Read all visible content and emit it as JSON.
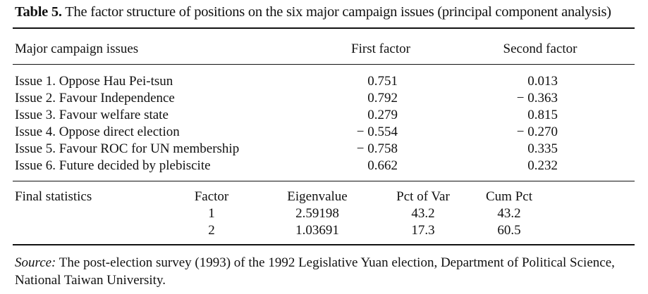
{
  "caption": {
    "label": "Table 5.",
    "text": "The factor structure of positions on the six major campaign issues (principal component analysis)"
  },
  "header": {
    "issues": "Major campaign issues",
    "first": "First factor",
    "second": "Second factor"
  },
  "issues": [
    {
      "name": "Issue 1. Oppose Hau Pei-tsun",
      "first": "0.751",
      "second": "0.013"
    },
    {
      "name": "Issue 2. Favour Independence",
      "first": "0.792",
      "second": "− 0.363"
    },
    {
      "name": "Issue 3. Favour welfare state",
      "first": "0.279",
      "second": "0.815"
    },
    {
      "name": "Issue 4. Oppose direct election",
      "first": "− 0.554",
      "second": "− 0.270"
    },
    {
      "name": "Issue 5. Favour ROC for UN membership",
      "first": "− 0.758",
      "second": "0.335"
    },
    {
      "name": "Issue 6. Future decided by plebiscite",
      "first": "0.662",
      "second": "0.232"
    }
  ],
  "final_stats": {
    "label": "Final statistics",
    "headers": {
      "factor": "Factor",
      "eigen": "Eigenvalue",
      "pct": "Pct of Var",
      "cum": "Cum Pct"
    },
    "rows": [
      {
        "factor": "1",
        "eigen": "2.59198",
        "pct": "43.2",
        "cum": "43.2"
      },
      {
        "factor": "2",
        "eigen": "1.03691",
        "pct": "17.3",
        "cum": "60.5"
      }
    ]
  },
  "source": {
    "label": "Source:",
    "text": " The post-election survey (1993) of the 1992 Legislative Yuan election, Department of Political Science, National Taiwan University."
  }
}
